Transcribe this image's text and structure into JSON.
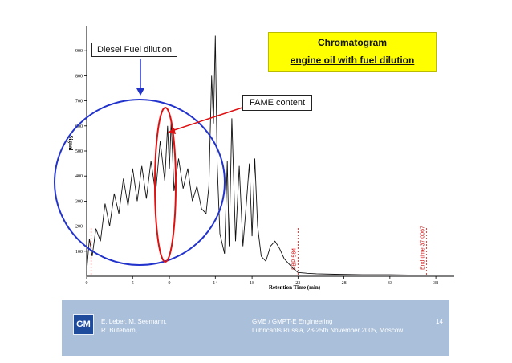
{
  "title": {
    "line1": "Chromatogram",
    "line2": "engine oil with fuel dilution"
  },
  "callouts": {
    "diesel": "Diesel Fuel dilution",
    "fame": "FAME content"
  },
  "chart_data": {
    "type": "line",
    "xlabel": "Retention Time (min)",
    "ylabel": "Signal",
    "xlim": [
      0,
      40
    ],
    "ylim": [
      0,
      1000
    ],
    "x_ticks": [
      0,
      5,
      9,
      14,
      18,
      23,
      28,
      33,
      38
    ],
    "y_ticks": [
      100,
      200,
      300,
      400,
      500,
      600,
      700,
      800,
      900
    ],
    "series": [
      {
        "x": [
          0,
          0.3,
          0.6,
          1.0,
          1.5,
          2.0,
          2.5,
          3.0,
          3.5,
          4.0,
          4.5,
          5.0,
          5.5,
          6.0,
          6.5,
          7.0,
          7.5,
          8.0,
          8.5,
          8.8,
          9.0,
          9.2,
          9.5,
          10.0,
          10.5,
          11.0,
          11.5,
          12.0,
          12.5,
          13.0,
          13.3,
          13.6,
          13.8,
          14.0,
          14.2,
          14.5,
          15.0,
          15.3,
          15.5,
          15.8,
          16.2,
          16.6,
          17.0,
          17.4,
          17.7,
          18.0,
          18.3,
          18.6,
          19.0,
          19.5,
          20.0,
          20.5,
          21.0,
          21.5,
          22.0,
          22.5,
          23.0,
          24.0,
          25.0,
          27.0,
          30.0,
          33.0,
          35.0,
          37.0,
          38.0,
          40.0
        ],
        "values": [
          20,
          150,
          80,
          190,
          140,
          290,
          200,
          330,
          250,
          390,
          280,
          430,
          300,
          440,
          310,
          460,
          330,
          540,
          380,
          600,
          430,
          620,
          340,
          470,
          350,
          430,
          300,
          360,
          270,
          250,
          360,
          800,
          610,
          960,
          450,
          170,
          90,
          460,
          120,
          630,
          140,
          440,
          120,
          300,
          450,
          160,
          470,
          200,
          80,
          60,
          120,
          140,
          110,
          70,
          50,
          30,
          15,
          12,
          10,
          8,
          6,
          6,
          5,
          5,
          5,
          5
        ]
      }
    ],
    "annotations": [
      {
        "label": "",
        "x": 0.5
      },
      {
        "label": "FBP 584",
        "x": 23
      },
      {
        "label": "End time 37.0067",
        "x": 37
      }
    ]
  },
  "footer": {
    "logo": "GM",
    "authors_line1": "E. Leber, M. Seemann,",
    "authors_line2": "R. Bütehorn,",
    "event_line1": "GME / GMPT-E Engineering",
    "event_line2": "Lubricants Russia, 23-25th November 2005, Moscow",
    "page_number": "14"
  }
}
